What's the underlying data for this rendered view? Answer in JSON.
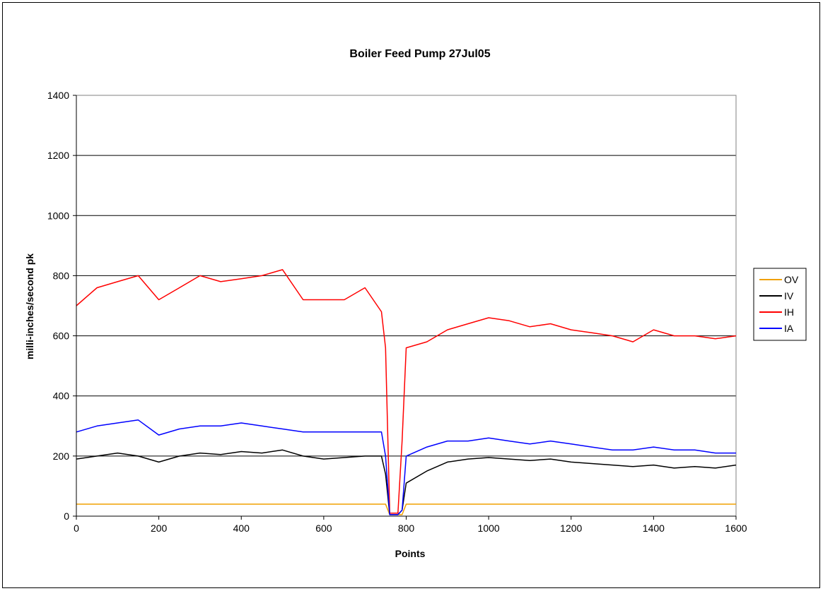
{
  "chart_data": {
    "type": "line",
    "title": "Boiler Feed Pump 27Jul05",
    "xlabel": "Points",
    "ylabel": "milli-inches/second pk",
    "xlim": [
      0,
      1600
    ],
    "ylim": [
      0,
      1400
    ],
    "xticks": [
      "0",
      "200",
      "400",
      "600",
      "800",
      "1000",
      "1200",
      "1400",
      "1600"
    ],
    "yticks": [
      "0",
      "200",
      "400",
      "600",
      "800",
      "1000",
      "1200",
      "1400"
    ],
    "grid": "horizontal",
    "legend": "right",
    "x": [
      0,
      50,
      100,
      150,
      200,
      250,
      300,
      350,
      400,
      450,
      500,
      550,
      600,
      650,
      700,
      740,
      750,
      760,
      780,
      790,
      800,
      850,
      900,
      950,
      1000,
      1050,
      1100,
      1150,
      1200,
      1250,
      1300,
      1350,
      1400,
      1450,
      1500,
      1550,
      1600
    ],
    "series": [
      {
        "name": "OV",
        "color": "#f0a000",
        "values": [
          40,
          40,
          40,
          40,
          40,
          40,
          40,
          40,
          40,
          40,
          40,
          40,
          40,
          40,
          40,
          40,
          40,
          5,
          5,
          5,
          40,
          40,
          40,
          40,
          40,
          40,
          40,
          40,
          40,
          40,
          40,
          40,
          40,
          40,
          40,
          40,
          40
        ]
      },
      {
        "name": "IV",
        "color": "#000000",
        "values": [
          190,
          200,
          210,
          200,
          180,
          200,
          210,
          205,
          215,
          210,
          220,
          200,
          190,
          195,
          200,
          200,
          140,
          5,
          5,
          20,
          110,
          150,
          180,
          190,
          195,
          190,
          185,
          190,
          180,
          175,
          170,
          165,
          170,
          160,
          165,
          160,
          170
        ]
      },
      {
        "name": "IH",
        "color": "#ff0000",
        "values": [
          700,
          760,
          780,
          800,
          720,
          760,
          800,
          780,
          790,
          800,
          820,
          720,
          720,
          720,
          760,
          680,
          560,
          10,
          10,
          250,
          560,
          580,
          620,
          640,
          660,
          650,
          630,
          640,
          620,
          610,
          600,
          580,
          620,
          600,
          600,
          590,
          600
        ]
      },
      {
        "name": "IA",
        "color": "#0000ff",
        "values": [
          280,
          300,
          310,
          320,
          270,
          290,
          300,
          300,
          310,
          300,
          290,
          280,
          280,
          280,
          280,
          280,
          200,
          5,
          5,
          20,
          200,
          230,
          250,
          250,
          260,
          250,
          240,
          250,
          240,
          230,
          220,
          220,
          230,
          220,
          220,
          210,
          210
        ]
      }
    ]
  }
}
